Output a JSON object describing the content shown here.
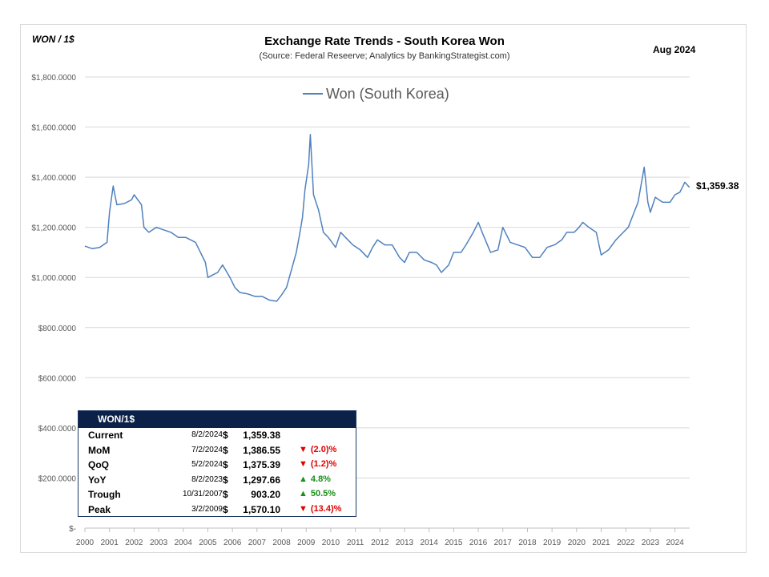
{
  "header": {
    "unit_label": "WON / 1$",
    "title": "Exchange Rate Trends - South Korea Won",
    "subtitle": "(Source: Federal Reseerve; Analytics by BankingStrategist.com)",
    "date_label": "Aug 2024"
  },
  "chart_data": {
    "type": "line",
    "title": "Exchange Rate Trends - South Korea Won",
    "xlabel": "",
    "ylabel": "",
    "ylim": [
      0,
      1800
    ],
    "xlim": [
      2000,
      2024.6
    ],
    "grid": true,
    "legend_placement": "top-center",
    "y_ticks": [
      0,
      200,
      400,
      600,
      800,
      1000,
      1200,
      1400,
      1600,
      1800
    ],
    "y_tick_labels": [
      "$-",
      "$200.0000",
      "$400.0000",
      "$600.0000",
      "$800.0000",
      "$1,000.0000",
      "$1,200.0000",
      "$1,400.0000",
      "$1,600.0000",
      "$1,800.0000"
    ],
    "x_ticks": [
      2000,
      2001,
      2002,
      2003,
      2004,
      2005,
      2006,
      2007,
      2008,
      2009,
      2010,
      2011,
      2012,
      2013,
      2014,
      2015,
      2016,
      2017,
      2018,
      2019,
      2020,
      2021,
      2022,
      2023,
      2024
    ],
    "x_tick_labels": [
      "2000",
      "2001",
      "2002",
      "2003",
      "2004",
      "2005",
      "2006",
      "2007",
      "2008",
      "2009",
      "2010",
      "2011",
      "2012",
      "2013",
      "2014",
      "2015",
      "2016",
      "2017",
      "2018",
      "2019",
      "2020",
      "2021",
      "2022",
      "2023",
      "2024"
    ],
    "end_label": "$1,359.38",
    "series": [
      {
        "name": "Won (South Korea)",
        "color": "#4f81bd",
        "x": [
          2000.0,
          2000.3,
          2000.6,
          2000.9,
          2001.0,
          2001.15,
          2001.3,
          2001.6,
          2001.9,
          2002.0,
          2002.3,
          2002.4,
          2002.6,
          2002.9,
          2003.2,
          2003.5,
          2003.8,
          2004.1,
          2004.5,
          2004.9,
          2005.0,
          2005.2,
          2005.4,
          2005.6,
          2005.9,
          2006.1,
          2006.3,
          2006.6,
          2006.9,
          2007.2,
          2007.5,
          2007.8,
          2008.0,
          2008.2,
          2008.4,
          2008.6,
          2008.75,
          2008.85,
          2008.95,
          2009.1,
          2009.17,
          2009.3,
          2009.5,
          2009.7,
          2009.9,
          2010.2,
          2010.4,
          2010.6,
          2010.9,
          2011.2,
          2011.5,
          2011.7,
          2011.9,
          2012.2,
          2012.5,
          2012.8,
          2013.0,
          2013.2,
          2013.5,
          2013.8,
          2014.1,
          2014.3,
          2014.5,
          2014.8,
          2015.0,
          2015.3,
          2015.5,
          2015.8,
          2016.0,
          2016.2,
          2016.5,
          2016.8,
          2017.0,
          2017.3,
          2017.6,
          2017.9,
          2018.2,
          2018.5,
          2018.8,
          2019.1,
          2019.4,
          2019.6,
          2019.9,
          2020.1,
          2020.25,
          2020.5,
          2020.8,
          2021.0,
          2021.3,
          2021.6,
          2021.9,
          2022.1,
          2022.3,
          2022.5,
          2022.75,
          2022.9,
          2023.0,
          2023.2,
          2023.5,
          2023.8,
          2024.0,
          2024.2,
          2024.4,
          2024.59
        ],
        "values": [
          1125,
          1115,
          1120,
          1140,
          1260,
          1365,
          1290,
          1295,
          1310,
          1330,
          1290,
          1200,
          1180,
          1200,
          1190,
          1180,
          1160,
          1160,
          1140,
          1060,
          1000,
          1010,
          1020,
          1050,
          1000,
          960,
          940,
          935,
          925,
          925,
          910,
          905,
          930,
          960,
          1030,
          1100,
          1180,
          1240,
          1350,
          1450,
          1570,
          1330,
          1270,
          1180,
          1160,
          1120,
          1180,
          1160,
          1130,
          1110,
          1080,
          1120,
          1150,
          1130,
          1130,
          1080,
          1060,
          1100,
          1100,
          1070,
          1060,
          1050,
          1020,
          1050,
          1100,
          1100,
          1130,
          1180,
          1220,
          1170,
          1100,
          1110,
          1200,
          1140,
          1130,
          1120,
          1080,
          1080,
          1120,
          1130,
          1150,
          1180,
          1180,
          1200,
          1220,
          1200,
          1180,
          1090,
          1110,
          1150,
          1180,
          1200,
          1250,
          1300,
          1440,
          1300,
          1260,
          1320,
          1300,
          1300,
          1330,
          1340,
          1380,
          1359.38
        ]
      }
    ]
  },
  "stats_table": {
    "header": "WON/1$",
    "rows": [
      {
        "label": "Current",
        "date": "8/2/2024",
        "dollar": "$",
        "value": "1,359.38",
        "arrow": "",
        "change": "",
        "dir": ""
      },
      {
        "label": "MoM",
        "date": "7/2/2024",
        "dollar": "$",
        "value": "1,386.55",
        "arrow": "▼",
        "change": "(2.0)%",
        "dir": "down"
      },
      {
        "label": "QoQ",
        "date": "5/2/2024",
        "dollar": "$",
        "value": "1,375.39",
        "arrow": "▼",
        "change": "(1.2)%",
        "dir": "down"
      },
      {
        "label": "YoY",
        "date": "8/2/2023",
        "dollar": "$",
        "value": "1,297.66",
        "arrow": "▲",
        "change": "4.8%",
        "dir": "up"
      },
      {
        "label": "Trough",
        "date": "10/31/2007",
        "dollar": "$",
        "value": "903.20",
        "arrow": "▲",
        "change": "50.5%",
        "dir": "up"
      },
      {
        "label": "Peak",
        "date": "3/2/2009",
        "dollar": "$",
        "value": "1,570.10",
        "arrow": "▼",
        "change": "(13.4)%",
        "dir": "down"
      }
    ]
  }
}
